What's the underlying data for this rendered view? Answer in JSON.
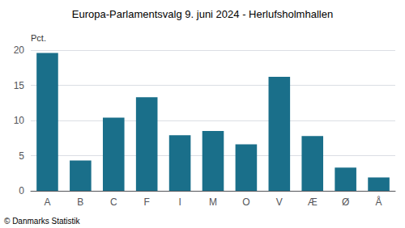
{
  "chart_data": {
    "type": "bar",
    "title": "Europa-Parlamentsvalg 9. juni 2024 - Herlufsholmhallen",
    "ylabel": "Pct.",
    "footer": "© Danmarks Statistik",
    "categories": [
      "A",
      "B",
      "C",
      "F",
      "I",
      "M",
      "O",
      "V",
      "Æ",
      "Ø",
      "Å"
    ],
    "values": [
      19.6,
      4.3,
      10.4,
      13.3,
      7.9,
      8.5,
      6.6,
      16.2,
      7.8,
      3.3,
      1.9
    ],
    "color": "#1a6f8a",
    "ylim": [
      0,
      20
    ],
    "yticks": [
      0,
      5,
      10,
      15,
      20
    ],
    "grid": true
  }
}
